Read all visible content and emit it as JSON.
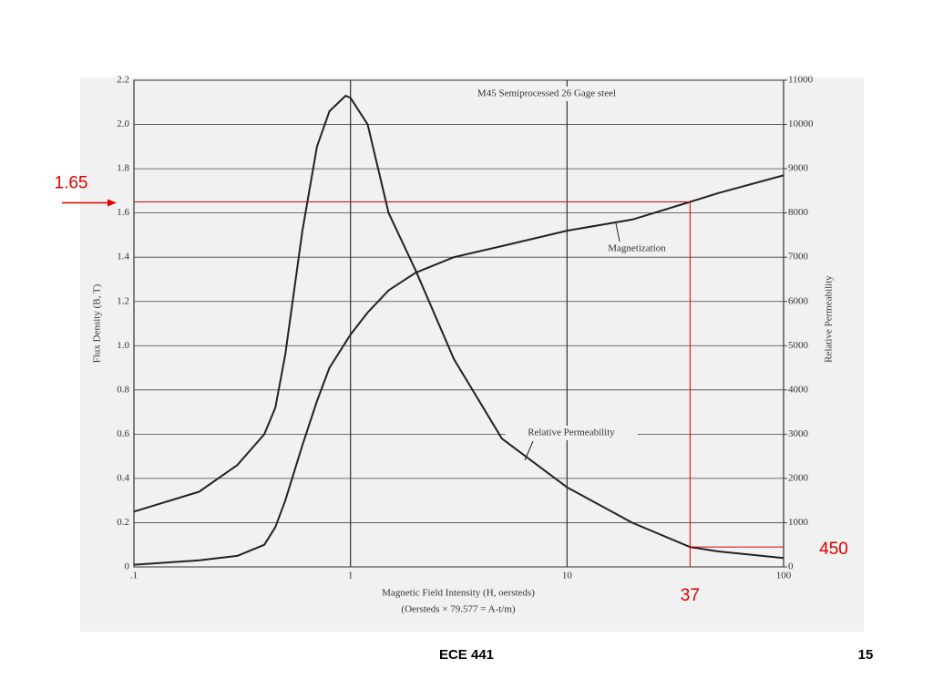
{
  "chart_data": {
    "type": "line",
    "title": "M45 Semiprocessed 26 Gage steel",
    "x_label": "Magnetic Field Intensity (H, oersteds)",
    "x_label_2": "(Oersteds × 79.577 = A-t/m)",
    "y_label": "Flux Density (B, T)",
    "y2_label": "Relative Permeability",
    "x_log": true,
    "grid": true,
    "xlim": [
      0.1,
      100
    ],
    "xticks": [
      {
        "value": 0.1,
        "label": ".1"
      },
      1,
      10,
      100
    ],
    "ylim": [
      0,
      2.2
    ],
    "yticks": [
      0,
      0.2,
      0.4,
      0.6,
      0.8,
      {
        "value": 1,
        "label": "1.0"
      },
      1.2,
      1.4,
      1.6,
      1.8,
      {
        "value": 2,
        "label": "2.0"
      },
      2.2
    ],
    "y2lim": [
      0,
      11000
    ],
    "y2ticks": [
      0,
      1000,
      2000,
      3000,
      4000,
      5000,
      6000,
      7000,
      8000,
      9000,
      10000,
      11000
    ],
    "series": [
      {
        "name": "Magnetization",
        "color": "#222222",
        "x": [
          0.1,
          0.2,
          0.3,
          0.4,
          0.45,
          0.5,
          0.6,
          0.7,
          0.8,
          1,
          1.2,
          1.5,
          2,
          3,
          5,
          10,
          20,
          37,
          50,
          100
        ],
        "values": [
          0.01,
          0.03,
          0.05,
          0.1,
          0.18,
          0.3,
          0.55,
          0.75,
          0.9,
          1.05,
          1.15,
          1.25,
          1.33,
          1.4,
          1.45,
          1.52,
          1.57,
          1.65,
          1.69,
          1.77
        ]
      },
      {
        "name": "Relative Permeability",
        "color": "#222222",
        "axis": "y2",
        "x": [
          0.1,
          0.2,
          0.3,
          0.4,
          0.45,
          0.5,
          0.6,
          0.7,
          0.8,
          0.95,
          1,
          1.2,
          1.5,
          2,
          3,
          5,
          10,
          20,
          37,
          50,
          100
        ],
        "values": [
          1250,
          1700,
          2300,
          3000,
          3600,
          4800,
          7600,
          9500,
          10300,
          10650,
          10600,
          10000,
          8000,
          6700,
          4700,
          2900,
          1800,
          1000,
          450,
          350,
          200
        ]
      }
    ],
    "reference": {
      "y": 1.65,
      "x": 37,
      "y2": 450,
      "color": "#e00000"
    }
  },
  "footer": {
    "course": "ECE 441",
    "page": "15"
  }
}
